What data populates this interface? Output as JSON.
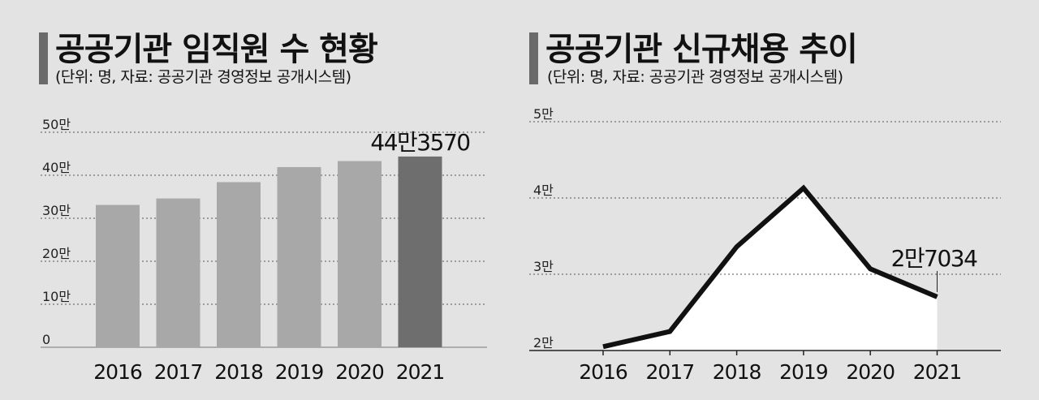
{
  "charts": [
    {
      "title": "공공기관 임직원 수 현황",
      "subtitle": "(단위: 명, 자료: 공공기관 경영정보 공개시스템)",
      "yticks": [
        "0",
        "10만",
        "20만",
        "30만",
        "40만",
        "50만"
      ],
      "callout": "44만3570"
    },
    {
      "title": "공공기관 신규채용 추이",
      "subtitle": "(단위: 명, 자료: 공공기관 경영정보 공개시스템)",
      "yticks": [
        "2만",
        "3만",
        "4만",
        "5만"
      ],
      "callout": "2만7034"
    }
  ],
  "chart_data": [
    {
      "type": "bar",
      "title": "공공기관 임직원 수 현황",
      "categories": [
        "2016",
        "2017",
        "2018",
        "2019",
        "2020",
        "2021"
      ],
      "values": [
        331000,
        346000,
        384000,
        419000,
        433000,
        443570
      ],
      "ylim": [
        0,
        500000
      ],
      "grid": true,
      "highlight_index": 5,
      "colors": {
        "bar": "#a8a8a8",
        "highlight": "#6e6e6e"
      }
    },
    {
      "type": "line",
      "title": "공공기관 신규채용 추이",
      "categories": [
        "2016",
        "2017",
        "2018",
        "2019",
        "2020",
        "2021"
      ],
      "values": [
        20500,
        22500,
        33600,
        41300,
        30700,
        27034
      ],
      "ylim": [
        20000,
        50000
      ],
      "grid": true,
      "colors": {
        "line": "#111111",
        "fill": "#ffffff"
      }
    }
  ]
}
